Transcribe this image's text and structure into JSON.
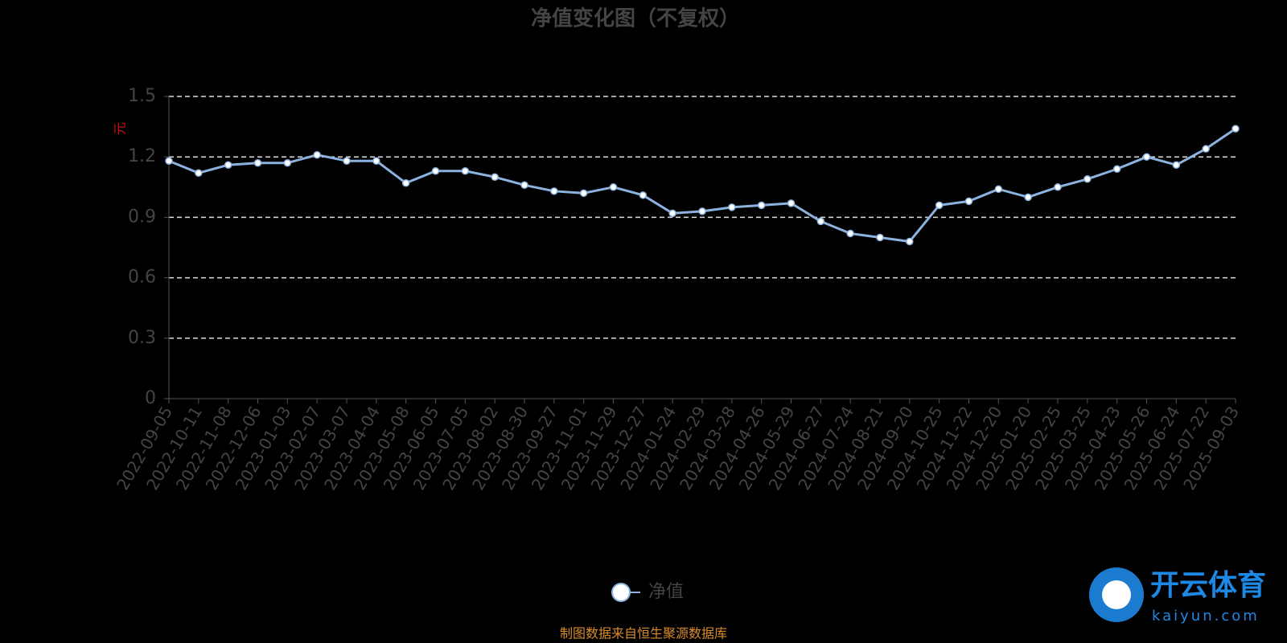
{
  "chart_data": {
    "type": "line",
    "title": "净值变化图（不复权）",
    "y_label": "元",
    "categories": [
      "2022-09-05",
      "2022-10-11",
      "2022-11-08",
      "2022-12-06",
      "2023-01-03",
      "2023-02-07",
      "2023-03-07",
      "2023-04-04",
      "2023-05-08",
      "2023-06-05",
      "2023-07-05",
      "2023-08-02",
      "2023-08-30",
      "2023-09-27",
      "2023-11-01",
      "2023-11-29",
      "2023-12-27",
      "2024-01-24",
      "2024-02-29",
      "2024-03-28",
      "2024-04-26",
      "2024-05-29",
      "2024-06-27",
      "2024-07-24",
      "2024-08-21",
      "2024-09-20",
      "2024-10-25",
      "2024-11-22",
      "2024-12-20",
      "2025-01-20",
      "2025-02-25",
      "2025-03-25",
      "2025-04-23",
      "2025-05-26",
      "2025-06-24",
      "2025-07-22",
      "2025-09-03"
    ],
    "series": [
      {
        "name": "净值",
        "color": "#8cb2e0",
        "values": [
          1.18,
          1.12,
          1.16,
          1.17,
          1.17,
          1.21,
          1.18,
          1.18,
          1.07,
          1.13,
          1.13,
          1.1,
          1.06,
          1.03,
          1.02,
          1.05,
          1.01,
          0.92,
          0.93,
          0.95,
          0.96,
          0.97,
          0.88,
          0.82,
          0.8,
          0.78,
          0.96,
          0.98,
          1.04,
          1.0,
          1.05,
          1.09,
          1.14,
          1.2,
          1.16,
          1.24,
          1.34
        ]
      }
    ],
    "ylim": [
      0,
      1.5
    ],
    "yticks": [
      0,
      0.3,
      0.6,
      0.9,
      1.2,
      1.5
    ],
    "grid": true,
    "source": "制图数据来自恒生聚源数据库",
    "watermark": {
      "name": "开云体育",
      "url": "kaiyun.com"
    }
  }
}
